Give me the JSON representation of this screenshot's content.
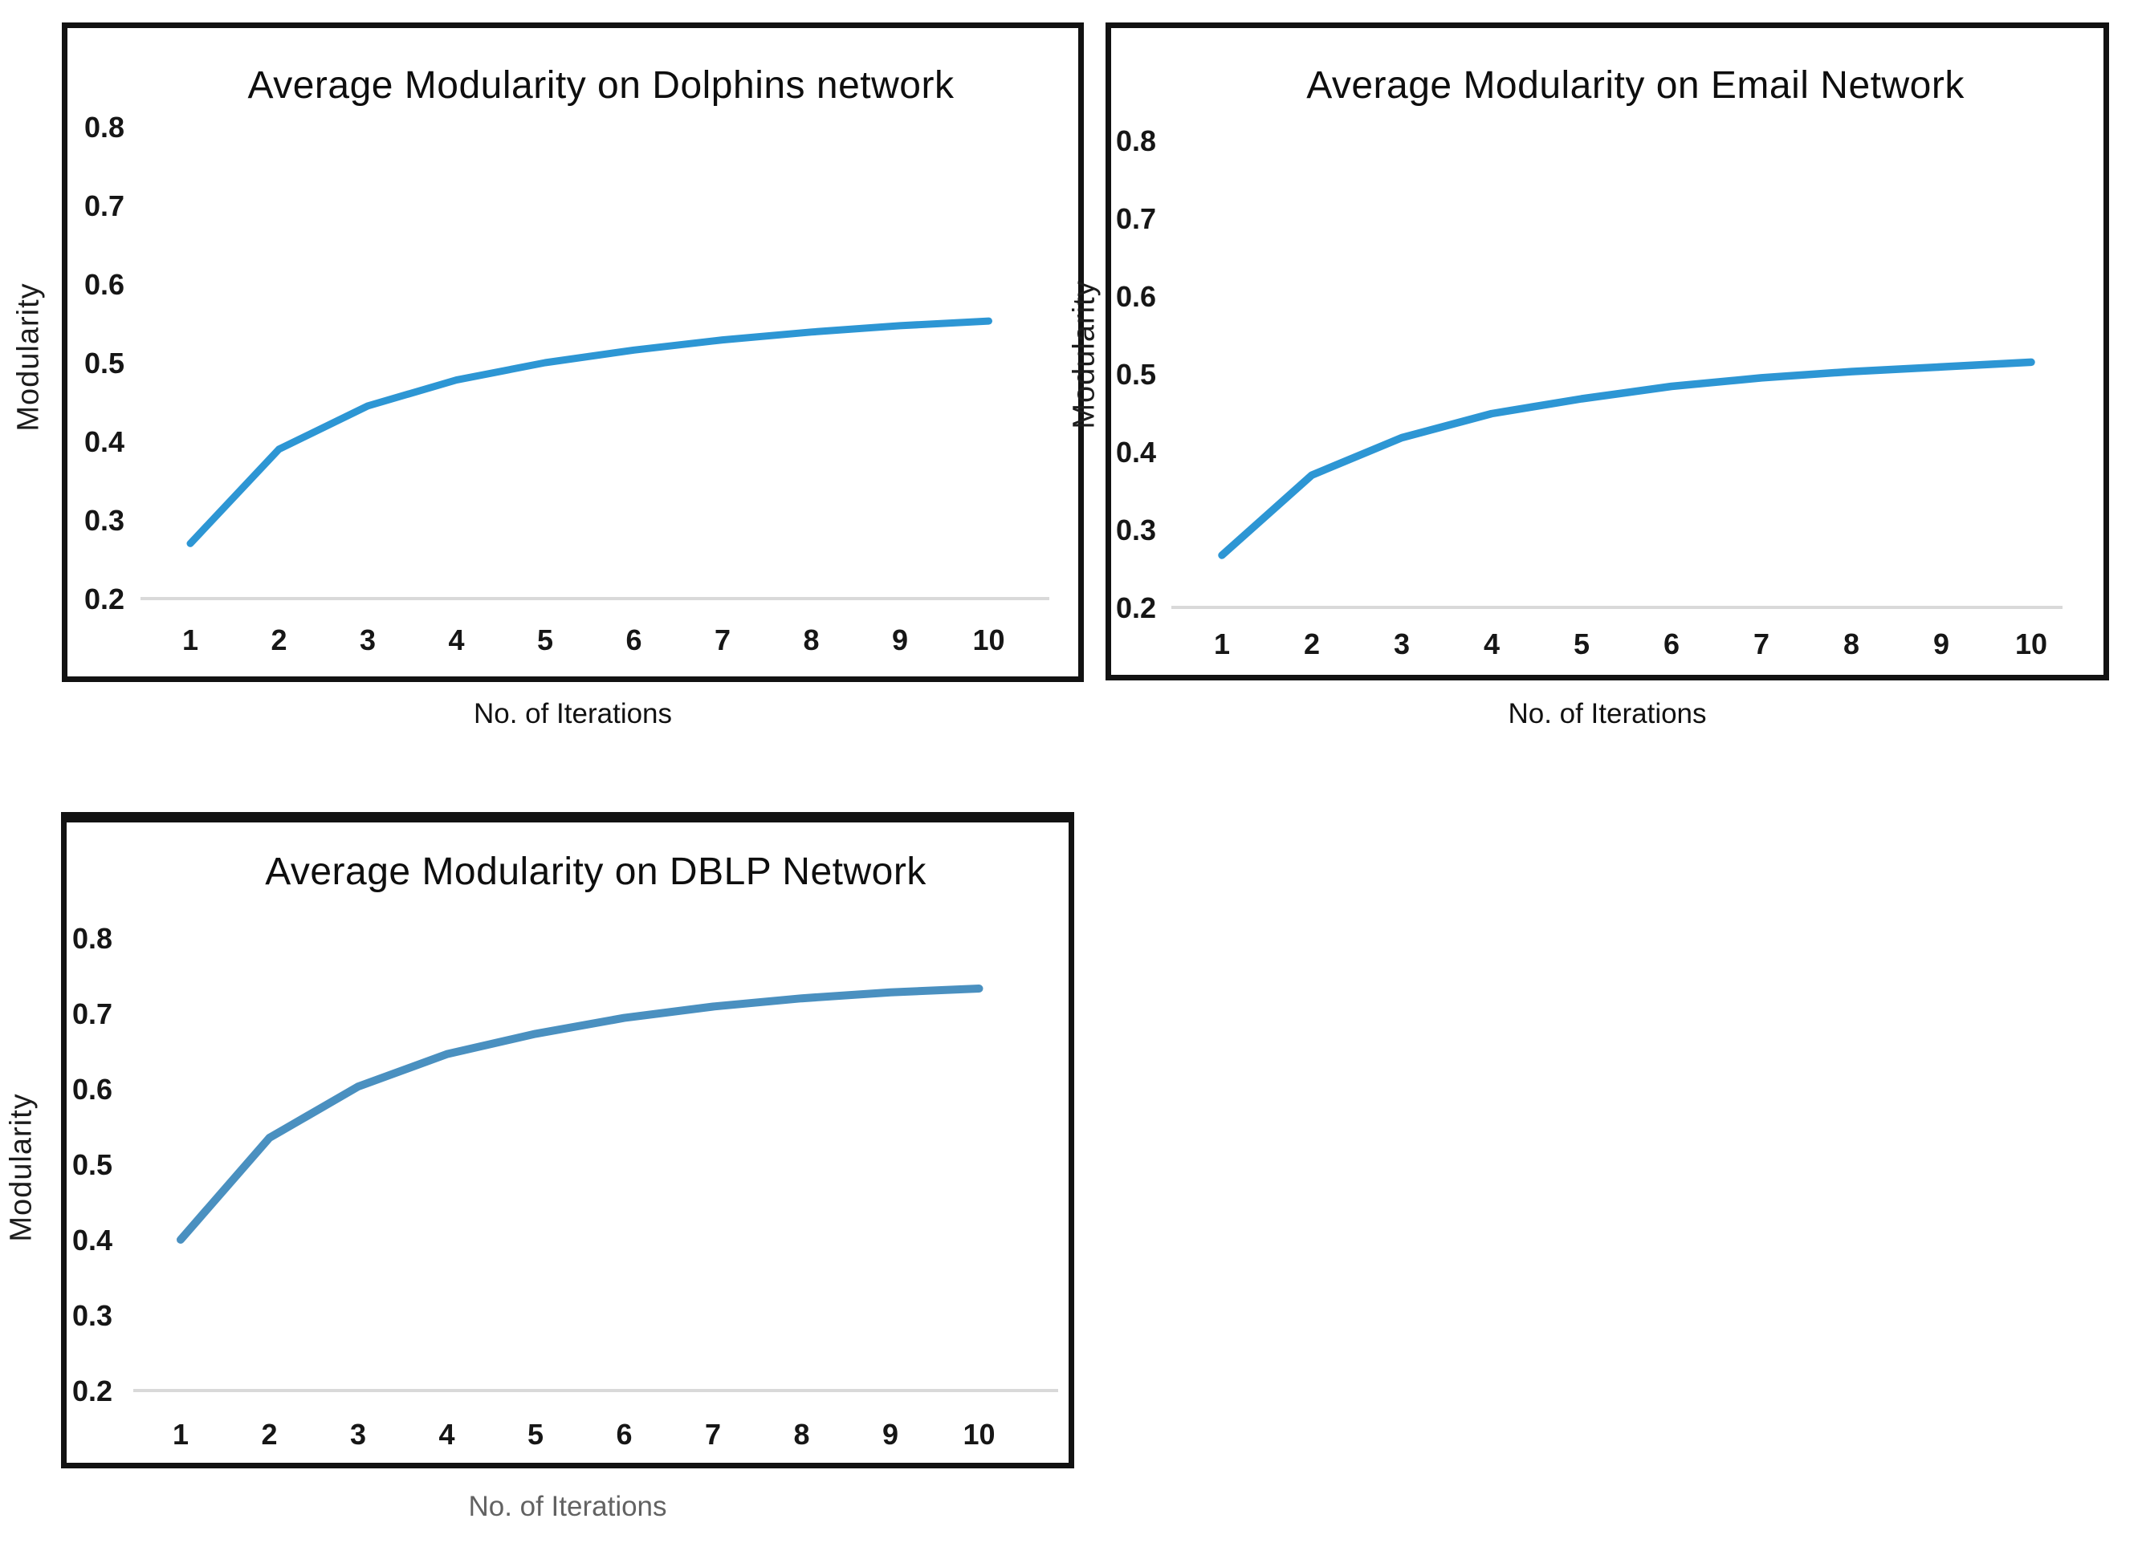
{
  "chart_data": [
    {
      "type": "line",
      "title": "Average Modularity on Dolphins network",
      "xlabel": "No. of Iterations",
      "ylabel": "Modularity",
      "x": [
        1,
        2,
        3,
        4,
        5,
        6,
        7,
        8,
        9,
        10
      ],
      "values": [
        0.27,
        0.39,
        0.445,
        0.478,
        0.5,
        0.516,
        0.529,
        0.539,
        0.547,
        0.553
      ],
      "ylim": [
        0.2,
        0.8
      ],
      "yticks": [
        0.8,
        0.7,
        0.6,
        0.5,
        0.4,
        0.3,
        0.2
      ],
      "xticks": [
        "1",
        "2",
        "3",
        "4",
        "5",
        "6",
        "7",
        "8",
        "9",
        "10"
      ],
      "grid": "single light horizontal baseline at y=0.2, no other gridlines",
      "legend": "none",
      "line_color": "#2D96D4",
      "gridline_color": "#D9D9D9",
      "text_color": "#161616",
      "frame_color": "#121212"
    },
    {
      "type": "line",
      "title": "Average Modularity on Email Network",
      "xlabel": "No. of Iterations",
      "ylabel": "Modularity",
      "x": [
        1,
        2,
        3,
        4,
        5,
        6,
        7,
        8,
        9,
        10
      ],
      "values": [
        0.267,
        0.37,
        0.418,
        0.449,
        0.468,
        0.484,
        0.495,
        0.503,
        0.509,
        0.515
      ],
      "ylim": [
        0.2,
        0.8
      ],
      "yticks": [
        0.8,
        0.7,
        0.6,
        0.5,
        0.4,
        0.3,
        0.2
      ],
      "xticks": [
        "1",
        "2",
        "3",
        "4",
        "5",
        "6",
        "7",
        "8",
        "9",
        "10"
      ],
      "grid": "single light horizontal baseline at y=0.2, no other gridlines",
      "legend": "none",
      "line_color": "#2D96D4",
      "gridline_color": "#D9D9D9",
      "text_color": "#161616",
      "frame_color": "#121212"
    },
    {
      "type": "line",
      "title": "Average Modularity on DBLP Network",
      "xlabel": "No. of Iterations",
      "ylabel": "Modularity",
      "x": [
        1,
        2,
        3,
        4,
        5,
        6,
        7,
        8,
        9,
        10
      ],
      "values": [
        0.4,
        0.535,
        0.603,
        0.646,
        0.673,
        0.694,
        0.709,
        0.72,
        0.728,
        0.733
      ],
      "ylim": [
        0.2,
        0.8
      ],
      "yticks": [
        0.8,
        0.7,
        0.6,
        0.5,
        0.4,
        0.3,
        0.2
      ],
      "xticks": [
        "1",
        "2",
        "3",
        "4",
        "5",
        "6",
        "7",
        "8",
        "9",
        "10"
      ],
      "grid": "single light horizontal baseline at y=0.2, no other gridlines",
      "legend": "none",
      "line_color": "#4A90C0",
      "gridline_color": "#D9D9D9",
      "text_color": "#161616",
      "frame_color": "#121212"
    }
  ]
}
